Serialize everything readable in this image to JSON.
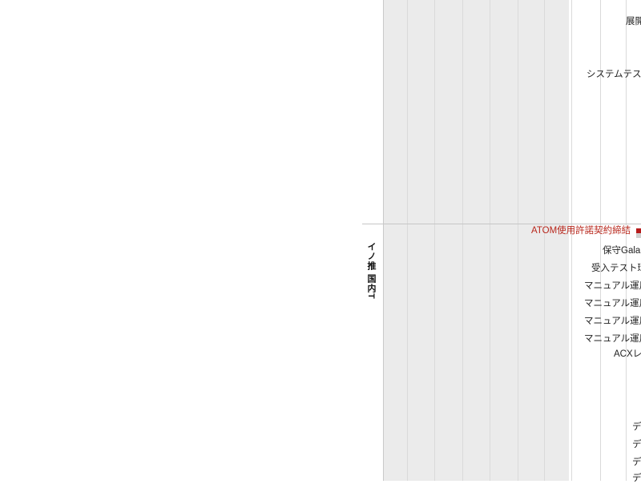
{
  "group": {
    "label": "イノ推 国内T"
  },
  "tasks_upper": [
    {
      "label": "展開"
    },
    {
      "label": "システムテス"
    }
  ],
  "milestone": {
    "label": "ATOM使用許諾契約締結",
    "color": "#b8271c"
  },
  "tasks_lower": [
    {
      "label": "保守Galan"
    },
    {
      "label": "受入テスト環"
    },
    {
      "label": "マニュアル運用"
    },
    {
      "label": "マニュアル運用"
    },
    {
      "label": "マニュアル運用"
    },
    {
      "label": "マニュアル運用"
    },
    {
      "label": "ACXレ"
    },
    {
      "label": "デ"
    },
    {
      "label": "デ"
    },
    {
      "label": "デ"
    },
    {
      "label": "デ"
    }
  ]
}
